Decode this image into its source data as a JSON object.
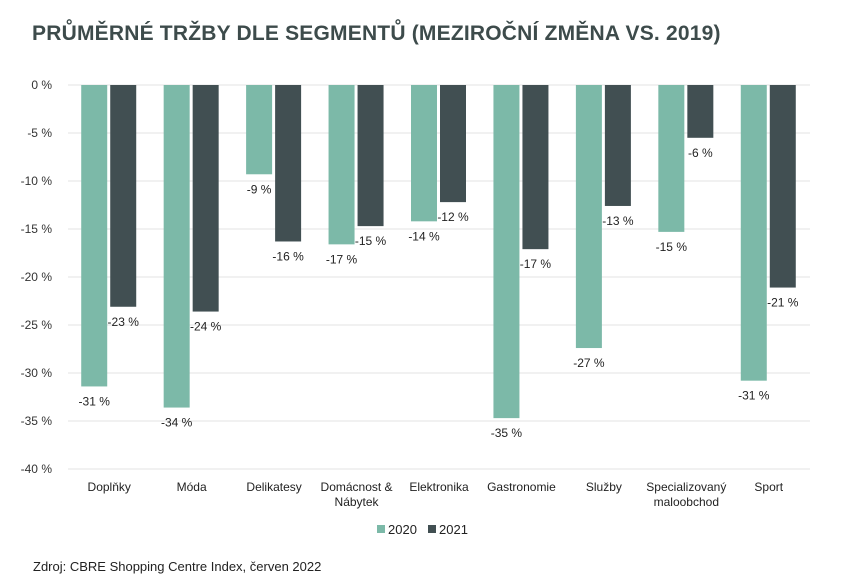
{
  "title": "PRŮMĚRNÉ TRŽBY DLE SEGMENTŮ (MEZIROČNÍ ZMĚNA VS. 2019)",
  "source": "Zdroj: CBRE Shopping Centre Index, červen 2022",
  "colors": {
    "s2020": "#7cb9a8",
    "s2021": "#414f52",
    "grid": "#e3e3e3",
    "text": "#222222"
  },
  "chart_data": {
    "type": "bar",
    "title": "PRŮMĚRNÉ TRŽBY DLE SEGMENTŮ (MEZIROČNÍ ZMĚNA VS. 2019)",
    "categories": [
      "Doplňky",
      "Móda",
      "Delikatesy",
      "Domácnost & Nábytek",
      "Elektronika",
      "Gastronomie",
      "Služby",
      "Specializovaný maloobchod",
      "Sport"
    ],
    "category_lines": [
      [
        "Doplňky"
      ],
      [
        "Móda"
      ],
      [
        "Delikatesy"
      ],
      [
        "Domácnost &",
        "Nábytek"
      ],
      [
        "Elektronika"
      ],
      [
        "Gastronomie"
      ],
      [
        "Služby"
      ],
      [
        "Specializovaný",
        "maloobchod"
      ],
      [
        "Sport"
      ]
    ],
    "series": [
      {
        "name": "2020",
        "values": [
          -31.4,
          -33.6,
          -9.3,
          -16.6,
          -14.2,
          -34.7,
          -27.4,
          -15.3,
          -30.8
        ],
        "labels": [
          "-31 %",
          "-34 %",
          "-9 %",
          "-17 %",
          "-14 %",
          "-35 %",
          "-27 %",
          "-15 %",
          "-31 %"
        ]
      },
      {
        "name": "2021",
        "values": [
          -23.1,
          -23.6,
          -16.3,
          -14.7,
          -12.2,
          -17.1,
          -12.6,
          -5.5,
          -21.1
        ],
        "labels": [
          "-23 %",
          "-24 %",
          "-16 %",
          "-15 %",
          "-12 %",
          "-17 %",
          "-13 %",
          "-6 %",
          "-21 %"
        ]
      }
    ],
    "ylim": [
      -40,
      0
    ],
    "yticks": [
      0,
      -5,
      -10,
      -15,
      -20,
      -25,
      -30,
      -35,
      -40
    ],
    "ytick_labels": [
      "0 %",
      "-5 %",
      "-10 %",
      "-15 %",
      "-20 %",
      "-25 %",
      "-30 %",
      "-35 %",
      "-40 %"
    ],
    "grid": true,
    "legend_position": "bottom-center"
  }
}
